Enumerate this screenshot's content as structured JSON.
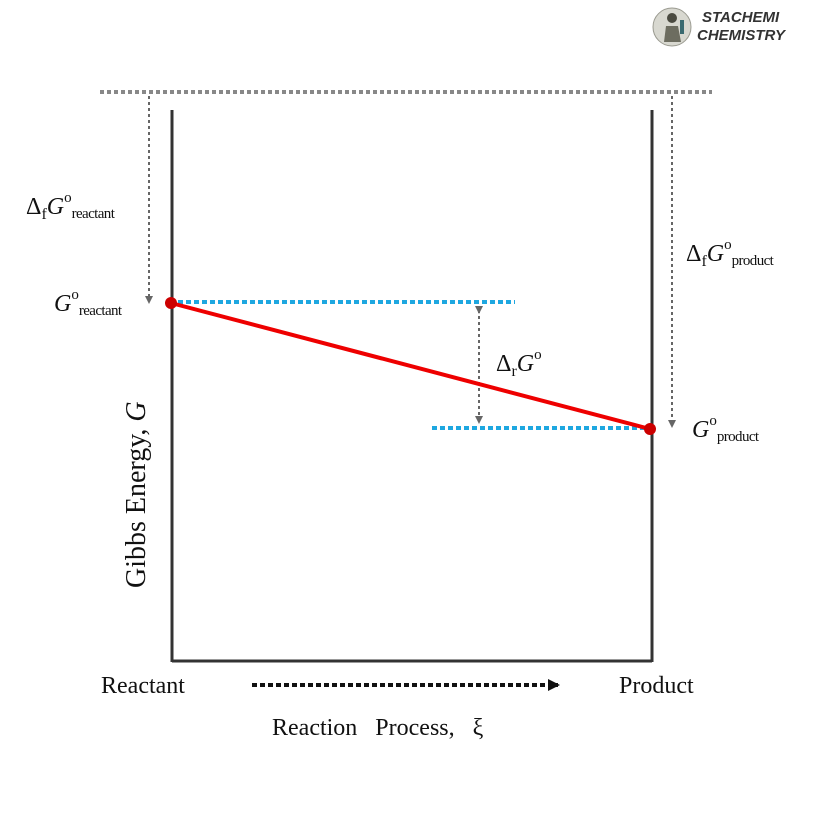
{
  "brand": {
    "line1": "STACHEMI",
    "line2": "CHEMISTRY",
    "logo_icon": "chemist-figure-icon"
  },
  "axes": {
    "ylabel_text": "Gibbs Energy, ",
    "ylabel_symbol": "G",
    "xlabel": "Reaction   Process,   ξ",
    "left_label": "Reactant",
    "right_label": "Product"
  },
  "labels": {
    "delta": "Δ",
    "f_sub": "f",
    "r_sub": "r",
    "G": "G",
    "degree": "o",
    "reactant_sub": "reactant",
    "product_sub": "product"
  },
  "colors": {
    "axis": "#333333",
    "reaction_line": "#ee0000",
    "point": "#cc0000",
    "level_line": "#1ea7e0",
    "guide": "#888888",
    "arrow": "#666666"
  }
}
